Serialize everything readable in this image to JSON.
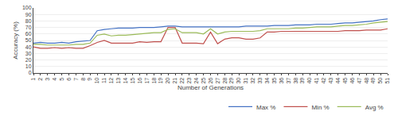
{
  "chart_data": {
    "type": "line",
    "xlabel": "Number of Generations",
    "ylabel": "Accuracy (%)",
    "x": [
      1,
      2,
      3,
      4,
      5,
      6,
      7,
      8,
      9,
      10,
      11,
      12,
      13,
      14,
      15,
      16,
      17,
      18,
      19,
      20,
      21,
      22,
      23,
      24,
      25,
      26,
      27,
      28,
      29,
      30,
      31,
      32,
      33,
      34,
      35,
      36,
      37,
      38,
      39,
      40,
      41,
      42,
      43,
      44,
      45,
      46,
      47,
      48,
      49,
      50,
      51
    ],
    "series": [
      {
        "name": "Max %",
        "color": "#4472c4",
        "values": [
          46,
          47,
          46,
          46,
          47,
          46,
          48,
          49,
          50,
          65,
          67,
          68,
          69,
          69,
          69,
          70,
          70,
          70,
          71,
          72,
          72,
          71,
          71,
          71,
          71,
          71,
          71,
          71,
          71,
          71,
          72,
          72,
          72,
          72,
          73,
          73,
          73,
          74,
          74,
          74,
          75,
          75,
          75,
          76,
          77,
          77,
          78,
          79,
          80,
          82,
          83
        ]
      },
      {
        "name": "Min %",
        "color": "#c0504d",
        "values": [
          40,
          38,
          38,
          39,
          38,
          39,
          38,
          38,
          42,
          47,
          50,
          46,
          46,
          46,
          46,
          48,
          47,
          48,
          48,
          70,
          70,
          46,
          46,
          46,
          45,
          63,
          45,
          52,
          54,
          54,
          52,
          52,
          54,
          63,
          63,
          64,
          64,
          64,
          64,
          64,
          64,
          64,
          64,
          64,
          65,
          65,
          65,
          66,
          66,
          66,
          68
        ]
      },
      {
        "name": "Avg %",
        "color": "#9bbb59",
        "values": [
          44,
          44,
          43,
          43,
          43,
          43,
          44,
          44,
          46,
          58,
          60,
          57,
          58,
          58,
          59,
          60,
          61,
          62,
          62,
          67,
          68,
          62,
          62,
          62,
          60,
          68,
          60,
          63,
          64,
          64,
          64,
          64,
          65,
          68,
          68,
          68,
          68,
          69,
          69,
          70,
          71,
          71,
          71,
          72,
          73,
          73,
          74,
          75,
          77,
          78,
          79
        ]
      }
    ],
    "xlim": [
      1,
      51
    ],
    "xticks": [
      1,
      2,
      3,
      4,
      5,
      6,
      7,
      8,
      9,
      10,
      11,
      12,
      13,
      14,
      15,
      16,
      17,
      18,
      19,
      20,
      21,
      22,
      23,
      24,
      25,
      26,
      27,
      28,
      29,
      30,
      31,
      32,
      33,
      34,
      35,
      36,
      37,
      38,
      39,
      40,
      41,
      42,
      43,
      44,
      45,
      46,
      47,
      48,
      49,
      50,
      51
    ],
    "ylim": [
      0,
      100
    ],
    "yticks": [
      0,
      10,
      20,
      30,
      40,
      50,
      60,
      70,
      80,
      90,
      100
    ],
    "grid": "y",
    "legend": "bottom"
  }
}
